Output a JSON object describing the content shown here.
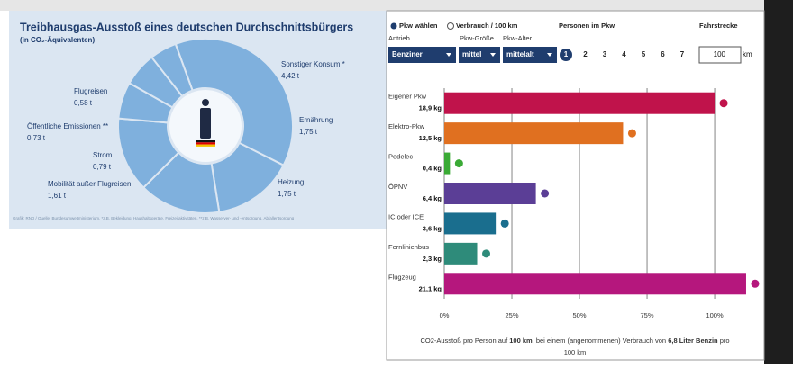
{
  "chart_data": [
    {
      "type": "pie",
      "title": "Treibhausgas-Ausstoß eines deutschen Durchschnittsbürgers",
      "subtitle": "(in CO₂-Äquivalenten)",
      "categories": [
        "Sonstiger Konsum *",
        "Ernährung",
        "Heizung",
        "Mobilität außer Flugreisen",
        "Strom",
        "Öffentliche Emissionen **",
        "Flugreisen"
      ],
      "values": [
        4.42,
        1.75,
        1.75,
        1.61,
        0.79,
        0.73,
        0.58
      ],
      "value_labels": [
        "4,42 t",
        "1,75 t",
        "1,75 t",
        "1,61 t",
        "0,79 t",
        "0,73 t",
        "0,58 t"
      ],
      "color": "#7fb0dd",
      "source": "Grafik: RND / Quelle: Bundesumweltministerium, *z.B. Bekleidung, Haushaltsgeräte, Freizeitaktivitäten, **z.B. Wasserver- und -entsorgung, Abfallentsorgung"
    },
    {
      "type": "hbar",
      "categories": [
        "Eigener Pkw",
        "Elektro-Pkw",
        "Pedelec",
        "ÖPNV",
        "IC oder ICE",
        "Fernlinienbus",
        "Flugzeug"
      ],
      "values": [
        18.9,
        12.5,
        0.4,
        6.4,
        3.6,
        2.3,
        21.1
      ],
      "value_labels": [
        "18,9 kg",
        "12,5 kg",
        "0,4 kg",
        "6,4 kg",
        "3,6 kg",
        "2,3 kg",
        "21,1 kg"
      ],
      "colors": [
        "#c0134b",
        "#e07020",
        "#3aaa35",
        "#5b3e96",
        "#1a6e8e",
        "#2e8b7a",
        "#b5177d"
      ],
      "xlim": [
        0,
        21.7
      ],
      "xticks": [
        {
          "value": 0,
          "label": "0%"
        },
        {
          "value": 4.725,
          "label": "25%"
        },
        {
          "value": 9.45,
          "label": "50%"
        },
        {
          "value": 14.175,
          "label": "75%"
        },
        {
          "value": 18.9,
          "label": "100%"
        }
      ],
      "grid": true,
      "caption_parts": [
        "CO2-Ausstoß pro Person auf ",
        "100 km",
        ", bei einem (angenommenen) Verbrauch von ",
        "6,8 Liter Benzin",
        " pro",
        "100 km"
      ]
    }
  ],
  "controls": {
    "mode_options": [
      "Pkw wählen",
      "Verbrauch / 100 km"
    ],
    "labels": [
      "Antrieb",
      "Pkw-Größe",
      "Pkw-Alter"
    ],
    "dropdowns": [
      "Benziner",
      "mittel",
      "mittelalt"
    ],
    "persons_title": "Personen im Pkw",
    "persons": [
      "1",
      "2",
      "3",
      "4",
      "5",
      "6",
      "7"
    ],
    "distance_title": "Fahrstrecke",
    "distance": "100",
    "distance_unit": "km"
  }
}
